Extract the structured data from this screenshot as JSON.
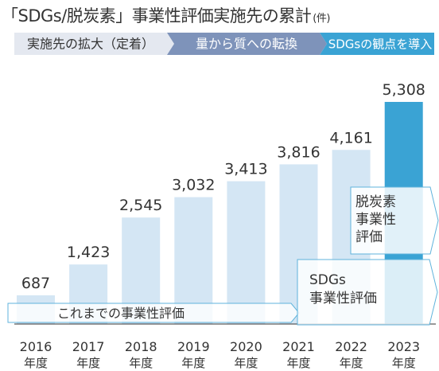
{
  "title": "「SDGs/脱炭素」事業性評価実施先の累計",
  "title_unit": "(件)",
  "phases": [
    {
      "label": "実施先の拡大（定着）",
      "fill": "#e4e8f0",
      "text_color": "#333333"
    },
    {
      "label": "量から質への転換",
      "fill": "#7e93ba",
      "text_color": "#ffffff"
    },
    {
      "label": "SDGsの観点を導入",
      "fill": "#3aa3d4",
      "text_color": "#ffffff"
    }
  ],
  "chart_data": {
    "type": "bar",
    "title": "「SDGs/脱炭素」事業性評価実施先の累計",
    "unit": "件",
    "categories": [
      "2016",
      "2017",
      "2018",
      "2019",
      "2020",
      "2021",
      "2022",
      "2023"
    ],
    "category_suffix": "年度",
    "values": [
      687,
      1423,
      2545,
      3032,
      3413,
      3816,
      4161,
      5308
    ],
    "value_labels": [
      "687",
      "1,423",
      "2,545",
      "3,032",
      "3,413",
      "3,816",
      "4,161",
      "5,308"
    ],
    "ylim": [
      0,
      5600
    ],
    "grid": false,
    "bar_color": "#d4e6f4",
    "highlight_color": "#3aa3d4",
    "highlight_category": "2023",
    "annotations": {
      "existing": "これまでの事業性評価",
      "sdgs": [
        "SDGs",
        "事業性評価"
      ],
      "decarbon": [
        "脱炭素",
        "事業性",
        "評価"
      ]
    }
  }
}
